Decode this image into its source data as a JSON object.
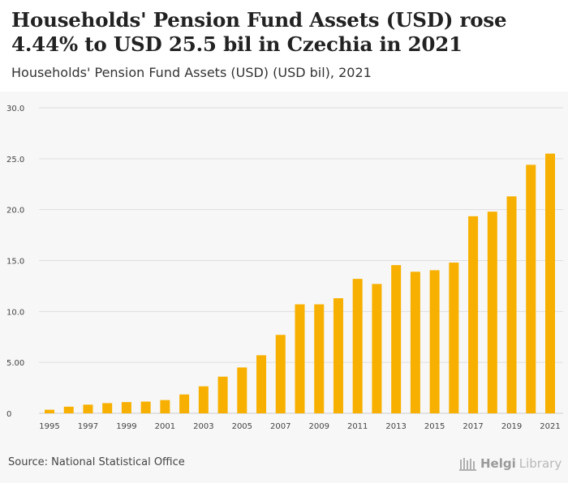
{
  "header": {
    "title": "Households' Pension Fund Assets (USD) rose 4.44% to USD 25.5 bil in Czechia in 2021",
    "subtitle": "Households' Pension Fund Assets (USD) (USD bil), 2021"
  },
  "footer": {
    "source": "Source: National Statistical Office",
    "logo_brand": "Helgi",
    "logo_suffix": "Library"
  },
  "colors": {
    "bar": "#f7b000",
    "grid": "#dedede",
    "axis_text": "#444444"
  },
  "chart_data": {
    "type": "bar",
    "title": "Households' Pension Fund Assets (USD) (USD bil), 2021",
    "xlabel": "",
    "ylabel": "",
    "ylim": [
      0,
      30
    ],
    "yticks": [
      0,
      5,
      10,
      15,
      20,
      25,
      30
    ],
    "ytick_labels": [
      "0",
      "5.00",
      "10.0",
      "15.0",
      "20.0",
      "25.0",
      "30.0"
    ],
    "categories": [
      "1995",
      "1996",
      "1997",
      "1998",
      "1999",
      "2000",
      "2001",
      "2002",
      "2003",
      "2004",
      "2005",
      "2006",
      "2007",
      "2008",
      "2009",
      "2010",
      "2011",
      "2012",
      "2013",
      "2014",
      "2015",
      "2016",
      "2017",
      "2018",
      "2019",
      "2020",
      "2021"
    ],
    "xtick_labels": [
      "1995",
      "",
      "1997",
      "",
      "1999",
      "",
      "2001",
      "",
      "2003",
      "",
      "2005",
      "",
      "2007",
      "",
      "2009",
      "",
      "2011",
      "",
      "2013",
      "",
      "2015",
      "",
      "2017",
      "",
      "2019",
      "",
      "2021"
    ],
    "values": [
      0.35,
      0.65,
      0.85,
      1.0,
      1.1,
      1.15,
      1.3,
      1.85,
      2.65,
      3.6,
      4.5,
      5.7,
      7.7,
      10.7,
      10.7,
      11.3,
      13.2,
      12.7,
      14.55,
      13.9,
      14.05,
      14.8,
      19.35,
      19.8,
      21.3,
      24.4,
      25.5
    ],
    "grid": true,
    "legend": "none"
  }
}
